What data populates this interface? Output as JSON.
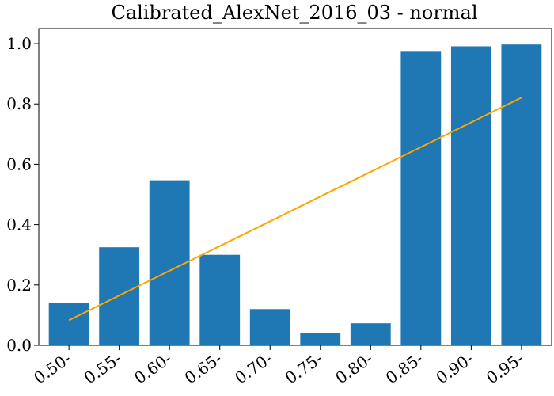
{
  "chart_data": {
    "type": "bar",
    "title": "Calibrated_AlexNet_2016_03 - normal",
    "xlabel": "",
    "ylabel": "",
    "categories": [
      "0.50-",
      "0.55-",
      "0.60-",
      "0.65-",
      "0.70-",
      "0.75-",
      "0.80-",
      "0.85-",
      "0.90-",
      "0.95-"
    ],
    "series": [
      {
        "type": "bar",
        "values": [
          0.14,
          0.325,
          0.547,
          0.3,
          0.12,
          0.04,
          0.073,
          0.973,
          0.991,
          0.997
        ],
        "color": "#1f77b4"
      },
      {
        "type": "line",
        "values": [
          0.083,
          0.165,
          0.247,
          0.329,
          0.411,
          0.493,
          0.575,
          0.657,
          0.739,
          0.821
        ],
        "color": "#ffa500"
      }
    ],
    "ylim": [
      0.0,
      1.05
    ],
    "yticks": [
      "0.0",
      "0.2",
      "0.4",
      "0.6",
      "0.8",
      "1.0"
    ],
    "ytick_values": [
      0.0,
      0.2,
      0.4,
      0.6,
      0.8,
      1.0
    ],
    "xtick_rotation": 35,
    "grid": false,
    "legend": "none"
  }
}
